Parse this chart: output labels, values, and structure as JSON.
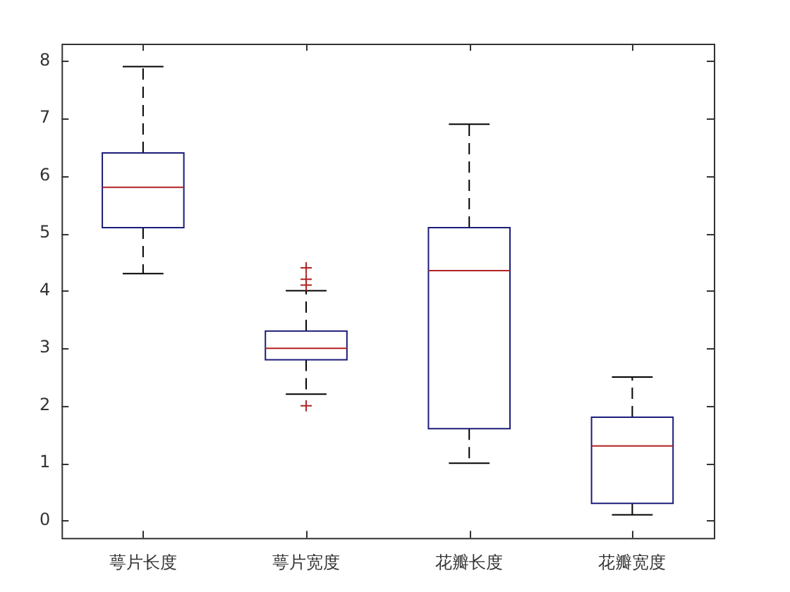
{
  "chart_data": {
    "type": "box",
    "categories": [
      "萼片长度",
      "萼片宽度",
      "花瓣长度",
      "花瓣宽度"
    ],
    "boxes": [
      {
        "low": 4.3,
        "q1": 5.1,
        "median": 5.8,
        "q3": 6.4,
        "high": 7.9
      },
      {
        "low": 2.2,
        "q1": 2.8,
        "median": 3.0,
        "q3": 3.3,
        "high": 4.0,
        "outliers": [
          2.0,
          4.1,
          4.2,
          4.4
        ]
      },
      {
        "low": 1.0,
        "q1": 1.6,
        "median": 4.35,
        "q3": 5.1,
        "high": 6.9
      },
      {
        "low": 0.1,
        "q1": 0.3,
        "median": 1.3,
        "q3": 1.8,
        "high": 2.5
      }
    ],
    "ylim": [
      -0.3,
      8.3
    ],
    "yticks": [
      0,
      1,
      2,
      3,
      4,
      5,
      6,
      7,
      8
    ]
  }
}
